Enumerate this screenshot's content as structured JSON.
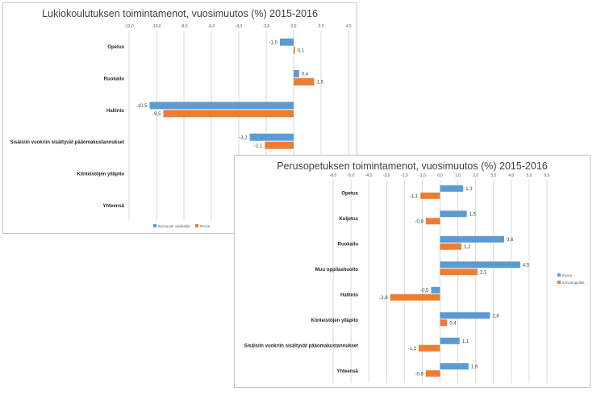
{
  "colors": {
    "blue": "#5B9BD5",
    "orange": "#ED7D31",
    "grid": "#D9D9D9",
    "text": "#404040"
  },
  "chart_data": [
    {
      "type": "bar",
      "orientation": "horizontal",
      "title": "Lukiokoulutuksen toimintamenot, vuosimuutos (%) 2015-2016",
      "xlim": [
        -12,
        4
      ],
      "ticks": [
        "-12,0",
        "-10,0",
        "-8,0",
        "-6,0",
        "-4,0",
        "-2,0",
        "0,0",
        "2,0",
        "4,0"
      ],
      "tick_values": [
        -12,
        -10,
        -8,
        -6,
        -4,
        -2,
        0,
        2,
        4
      ],
      "categories": [
        "Opetus",
        "Ruokailu",
        "Hallinto",
        "Sisäisiin vuokriin sisältyvät pääomakustannukset",
        "Kiinteistöjen ylläpito",
        "Yhteensä"
      ],
      "series": [
        {
          "name": "Euroa per opiskelija",
          "color": "#5B9BD5",
          "values": [
            -1.0,
            0.4,
            -10.5,
            -3.2,
            null,
            null
          ],
          "labels": [
            "-1,0",
            "0,4",
            "-10,5",
            "-3,2",
            "",
            ""
          ]
        },
        {
          "name": "Euroa",
          "color": "#ED7D31",
          "values": [
            0.1,
            1.5,
            -9.5,
            -2.1,
            null,
            null
          ],
          "labels": [
            "0,1",
            "1,5",
            "-9,5",
            "-2,1",
            "",
            ""
          ]
        }
      ],
      "legend": "bottom",
      "grid": true
    },
    {
      "type": "bar",
      "orientation": "horizontal",
      "title": "Perusopetuksen toimintamenot, vuosimuutos (%) 2015-2016",
      "xlim": [
        -6,
        6
      ],
      "ticks": [
        "-6,0",
        "-5,0",
        "-4,0",
        "-3,0",
        "-2,0",
        "-1,0",
        "0,0",
        "1,0",
        "2,0",
        "3,0",
        "4,0",
        "5,0",
        "6,0"
      ],
      "tick_values": [
        -6,
        -5,
        -4,
        -3,
        -2,
        -1,
        0,
        1,
        2,
        3,
        4,
        5,
        6
      ],
      "categories": [
        "Opetus",
        "Kuljetus",
        "Ruokailu",
        "Muu oppilashuolto",
        "Hallinto",
        "Kiinteistöjen ylläpito",
        "Sisäisiin vuokriin sisältyvät pääomakustannukset",
        "Yhteensä"
      ],
      "series": [
        {
          "name": "Euroa",
          "color": "#5B9BD5",
          "values": [
            1.3,
            1.5,
            3.6,
            4.5,
            -0.5,
            2.8,
            1.1,
            1.6
          ],
          "labels": [
            "1,3",
            "1,5",
            "3,6",
            "4,5",
            "-0,5",
            "2,8",
            "1,1",
            "1,6"
          ]
        },
        {
          "name": "Euroa/oppilas",
          "color": "#ED7D31",
          "values": [
            -1.1,
            -0.8,
            1.2,
            2.1,
            -2.8,
            0.4,
            -1.2,
            -0.8
          ],
          "labels": [
            "-1,1",
            "-0,8",
            "1,2",
            "2,1",
            "-2,8",
            "0,4",
            "-1,2",
            "-0,8"
          ]
        }
      ],
      "legend": "right",
      "grid": true
    }
  ]
}
